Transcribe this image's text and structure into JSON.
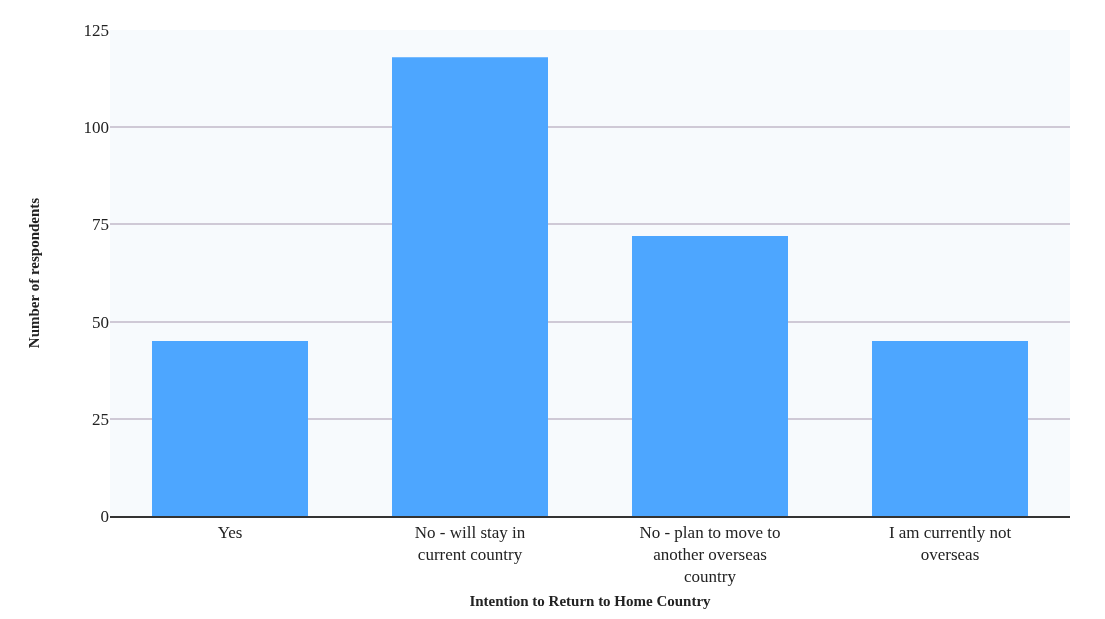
{
  "chart_data": {
    "type": "bar",
    "xlabel": "Intention to Return to Home Country",
    "ylabel": "Number of respondents",
    "categories": [
      "Yes",
      "No - will stay in\ncurrent country",
      "No - plan to move to\nanother overseas\ncountry",
      "I am currently not\noverseas"
    ],
    "values": [
      45,
      118,
      72,
      45
    ],
    "color": "#4da6ff",
    "ylim": [
      0,
      125
    ],
    "yticks": [
      0,
      25,
      50,
      75,
      100,
      125
    ],
    "grid": "y"
  }
}
